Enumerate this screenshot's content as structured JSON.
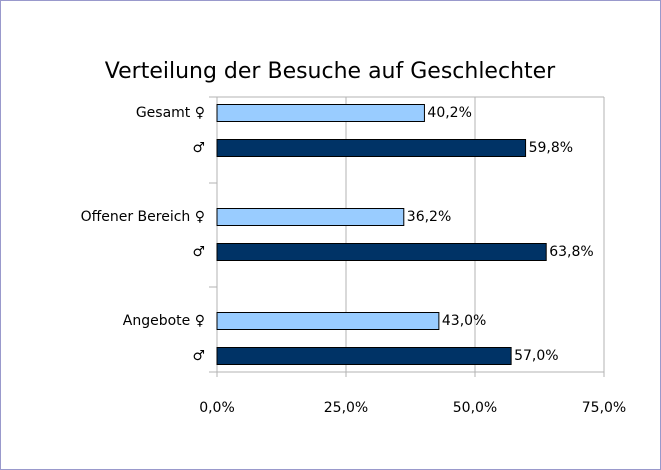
{
  "chart_data": {
    "type": "bar",
    "orientation": "horizontal",
    "title": "Verteilung der Besuche auf Geschlechter",
    "categories": [
      "Gesamt ♀",
      "♂",
      "Offener Bereich ♀",
      "♂",
      "Angebote ♀",
      "♂"
    ],
    "values": [
      40.2,
      59.8,
      36.2,
      63.8,
      43.0,
      57.0
    ],
    "value_labels": [
      "40,2%",
      "59,8%",
      "36,2%",
      "63,8%",
      "43,0%",
      "57,0%"
    ],
    "colors": [
      "#99ccff",
      "#003366",
      "#99ccff",
      "#003366",
      "#99ccff",
      "#003366"
    ],
    "xlim": [
      0,
      75
    ],
    "xticks": [
      {
        "value": 0,
        "label": "0,0%"
      },
      {
        "value": 25,
        "label": "25,0%"
      },
      {
        "value": 50,
        "label": "50,0%"
      },
      {
        "value": 75,
        "label": "75,0%"
      }
    ],
    "grid": true
  }
}
